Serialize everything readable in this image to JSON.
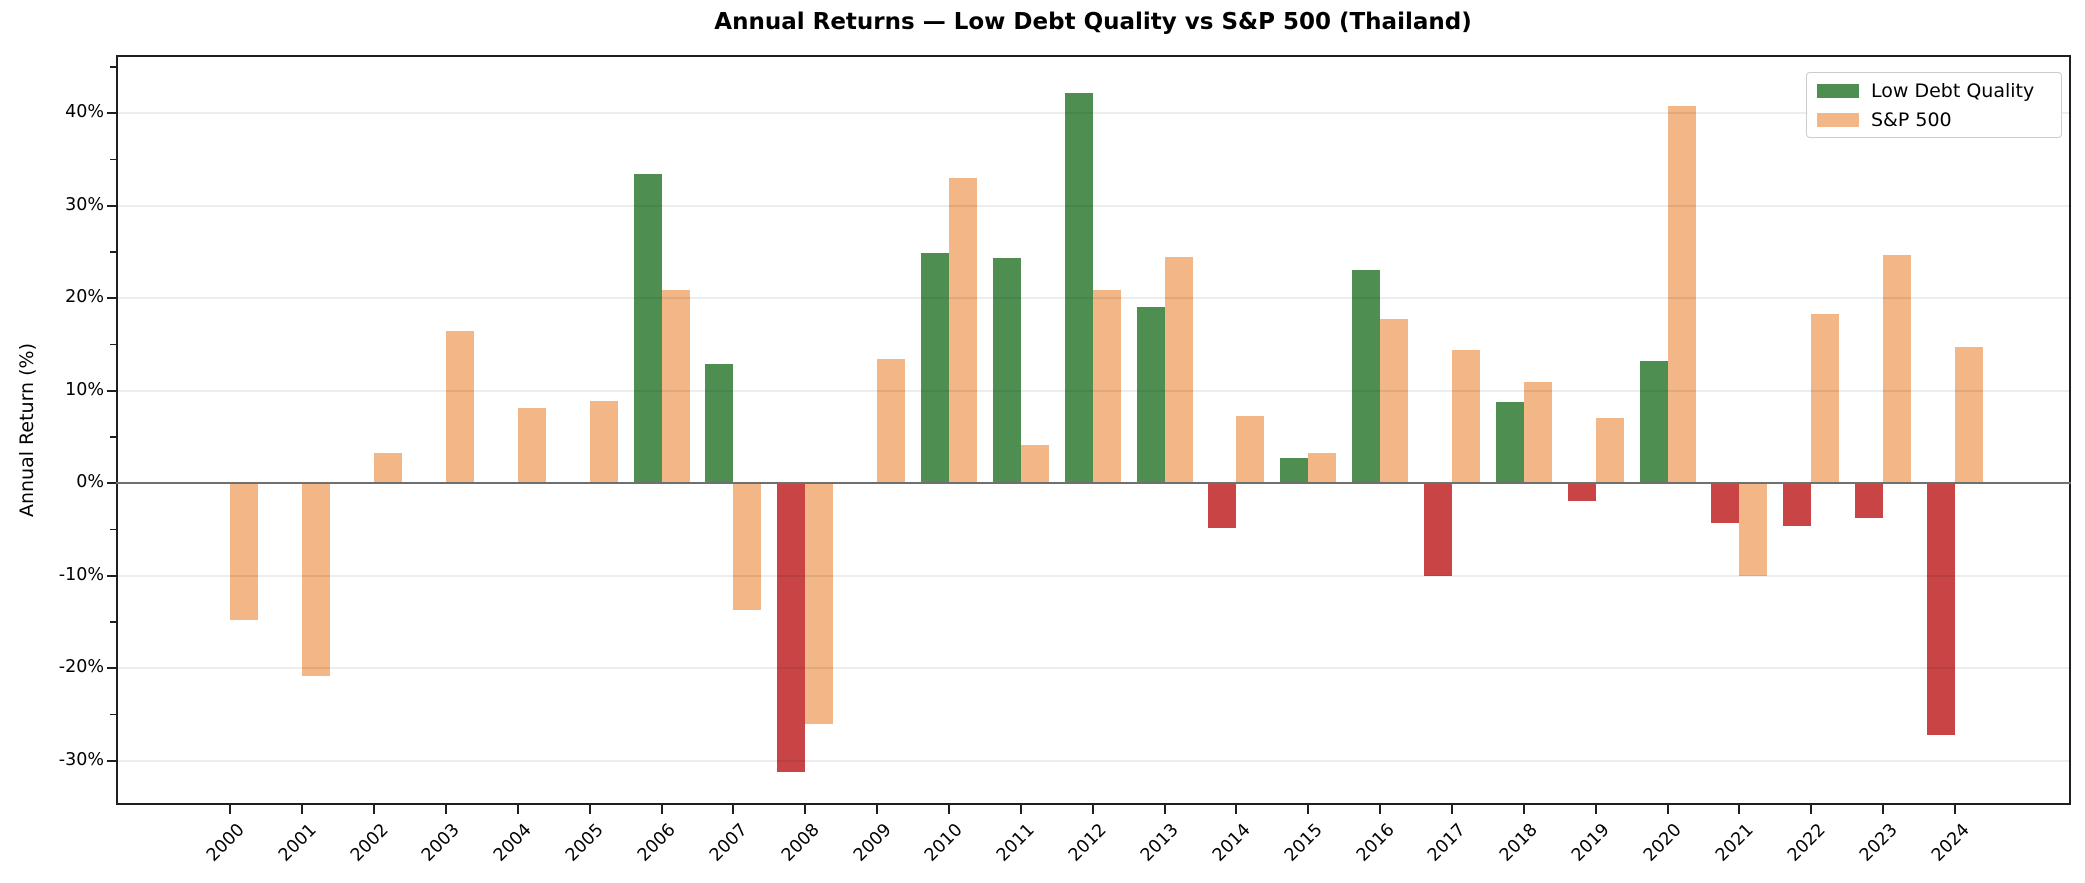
{
  "chart_data": {
    "type": "bar",
    "title": "Annual Returns — Low Debt Quality vs S&P 500 (Thailand)",
    "ylabel": "Annual Return (%)",
    "xlabel": "",
    "categories": [
      2000,
      2001,
      2002,
      2003,
      2004,
      2005,
      2006,
      2007,
      2008,
      2009,
      2010,
      2011,
      2012,
      2013,
      2014,
      2015,
      2016,
      2017,
      2018,
      2019,
      2020,
      2021,
      2022,
      2023,
      2024
    ],
    "series": [
      {
        "name": "Low Debt Quality",
        "color": "#4e8f51",
        "negative_color": "#c94444",
        "values": [
          null,
          null,
          null,
          null,
          null,
          null,
          33.4,
          12.9,
          -31.2,
          null,
          24.9,
          24.4,
          42.2,
          19.1,
          -4.8,
          2.7,
          23.1,
          -10.0,
          8.8,
          -1.9,
          13.2,
          -4.3,
          -4.6,
          -3.8,
          -27.2
        ]
      },
      {
        "name": "S&P 500",
        "color": "#f2b687",
        "negative_color": "#f2b687",
        "values": [
          -14.8,
          -20.9,
          3.3,
          16.5,
          8.1,
          8.9,
          20.9,
          -13.7,
          -26.0,
          13.4,
          33.0,
          4.1,
          20.9,
          24.5,
          7.3,
          3.3,
          17.7,
          14.4,
          10.9,
          7.1,
          40.8,
          -10.0,
          18.3,
          24.7,
          14.7
        ]
      }
    ],
    "ylim": [
      -34.8,
      46.3
    ],
    "yticks": {
      "values": [
        40,
        30,
        20,
        10,
        0,
        -10,
        -20,
        -30
      ],
      "labels": [
        "40%",
        "30%",
        "20%",
        "10%",
        "0%",
        "-10%",
        "-20%",
        "-30%"
      ]
    },
    "yticks_minor": [
      45,
      35,
      25,
      15,
      5,
      -5,
      -15,
      -25
    ],
    "grid": true,
    "zero_line": true,
    "legend_position": "upper right"
  }
}
